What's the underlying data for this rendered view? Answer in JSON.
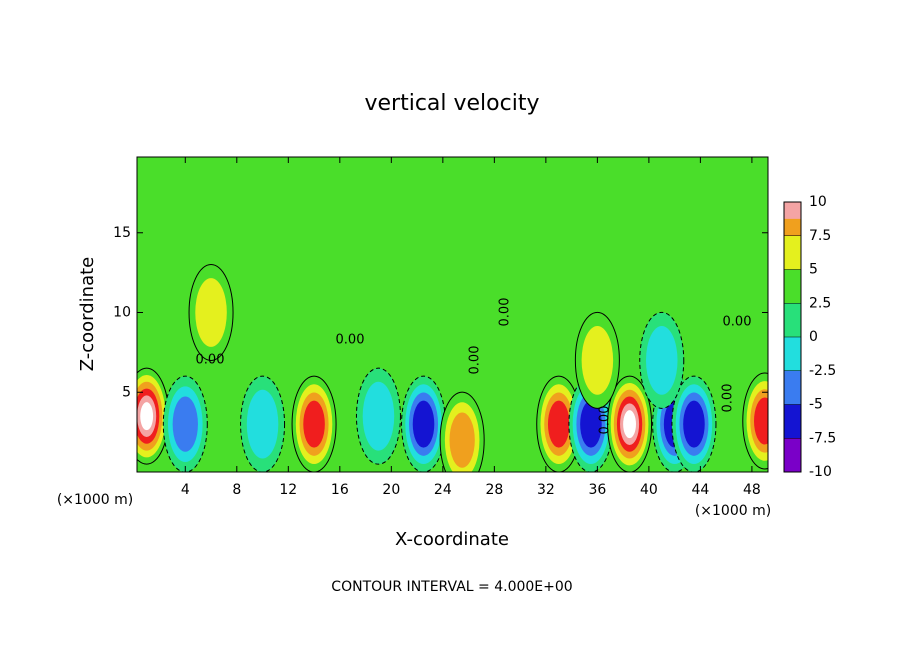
{
  "chart_data": {
    "type": "contour",
    "title": "vertical velocity",
    "xlabel": "X-coordinate",
    "ylabel": "Z-coordinate",
    "x_unit": "(×1000 m)",
    "footer": "CONTOUR INTERVAL = 4.000E+00",
    "xlim": [
      0.25,
      49.25
    ],
    "ylim": [
      0,
      19.75
    ],
    "xticks": [
      4,
      8,
      12,
      16,
      20,
      24,
      28,
      32,
      36,
      40,
      44,
      48
    ],
    "yticks": [
      5,
      10,
      15
    ],
    "colorbar": {
      "levels": [
        -10,
        -7.5,
        -5,
        -2.5,
        0,
        2.5,
        5,
        7.5,
        10
      ],
      "colors": [
        "#7a00c8",
        "#1414d2",
        "#3a7cf0",
        "#22dede",
        "#28e07a",
        "#4ade2a",
        "#e4f01e",
        "#f0a01e",
        "#f01e1e",
        "#f4a4a4"
      ]
    },
    "contour_labels": [
      "0.00",
      "0.00",
      "0.00",
      "0.00",
      "0.00",
      "0.00",
      "0.00"
    ],
    "field_extrema": {
      "x": [
        1,
        4,
        14,
        19,
        22.5,
        25.5,
        33,
        35.5,
        38.5,
        42,
        43.5,
        49,
        6,
        36,
        10,
        41
      ],
      "z": [
        3.5,
        3,
        3,
        3.5,
        3,
        2,
        3,
        3,
        3,
        3,
        3,
        3.2,
        10,
        7,
        3,
        7
      ],
      "values": [
        11,
        -6,
        10,
        -5,
        -9,
        7,
        8,
        -8,
        11,
        -8,
        -8,
        9,
        3,
        4,
        -3,
        -3
      ]
    }
  }
}
